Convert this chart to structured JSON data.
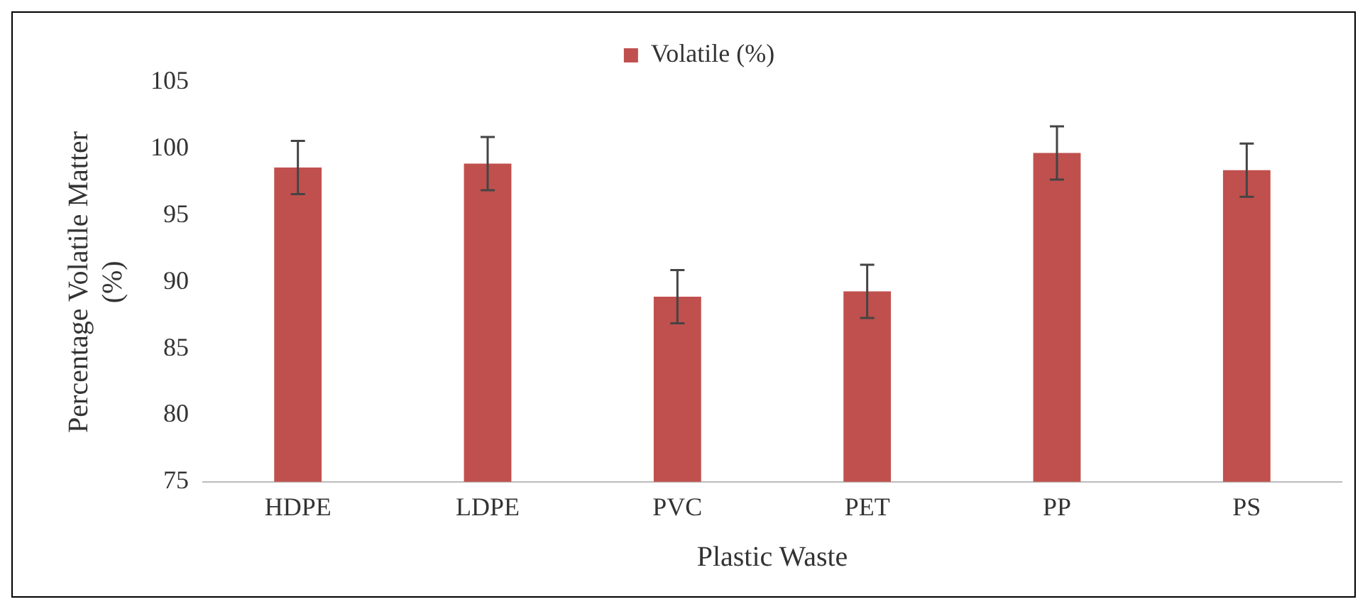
{
  "chart_data": {
    "type": "bar",
    "xlabel": "Plastic Waste",
    "ylabel": "Percentage Volatile Matter (%)",
    "categories": [
      "HDPE",
      "LDPE",
      "PVC",
      "PET",
      "PP",
      "PS"
    ],
    "series": [
      {
        "name": "Volatile (%)",
        "color": "#c0504d",
        "values": [
          98.6,
          98.9,
          88.9,
          89.3,
          99.7,
          98.4
        ],
        "errors": [
          2,
          2,
          2,
          2,
          2,
          2
        ]
      }
    ],
    "ylim": [
      75,
      105
    ],
    "yticks": [
      75,
      80,
      85,
      90,
      95,
      100,
      105
    ],
    "grid": false,
    "legend": "top"
  }
}
